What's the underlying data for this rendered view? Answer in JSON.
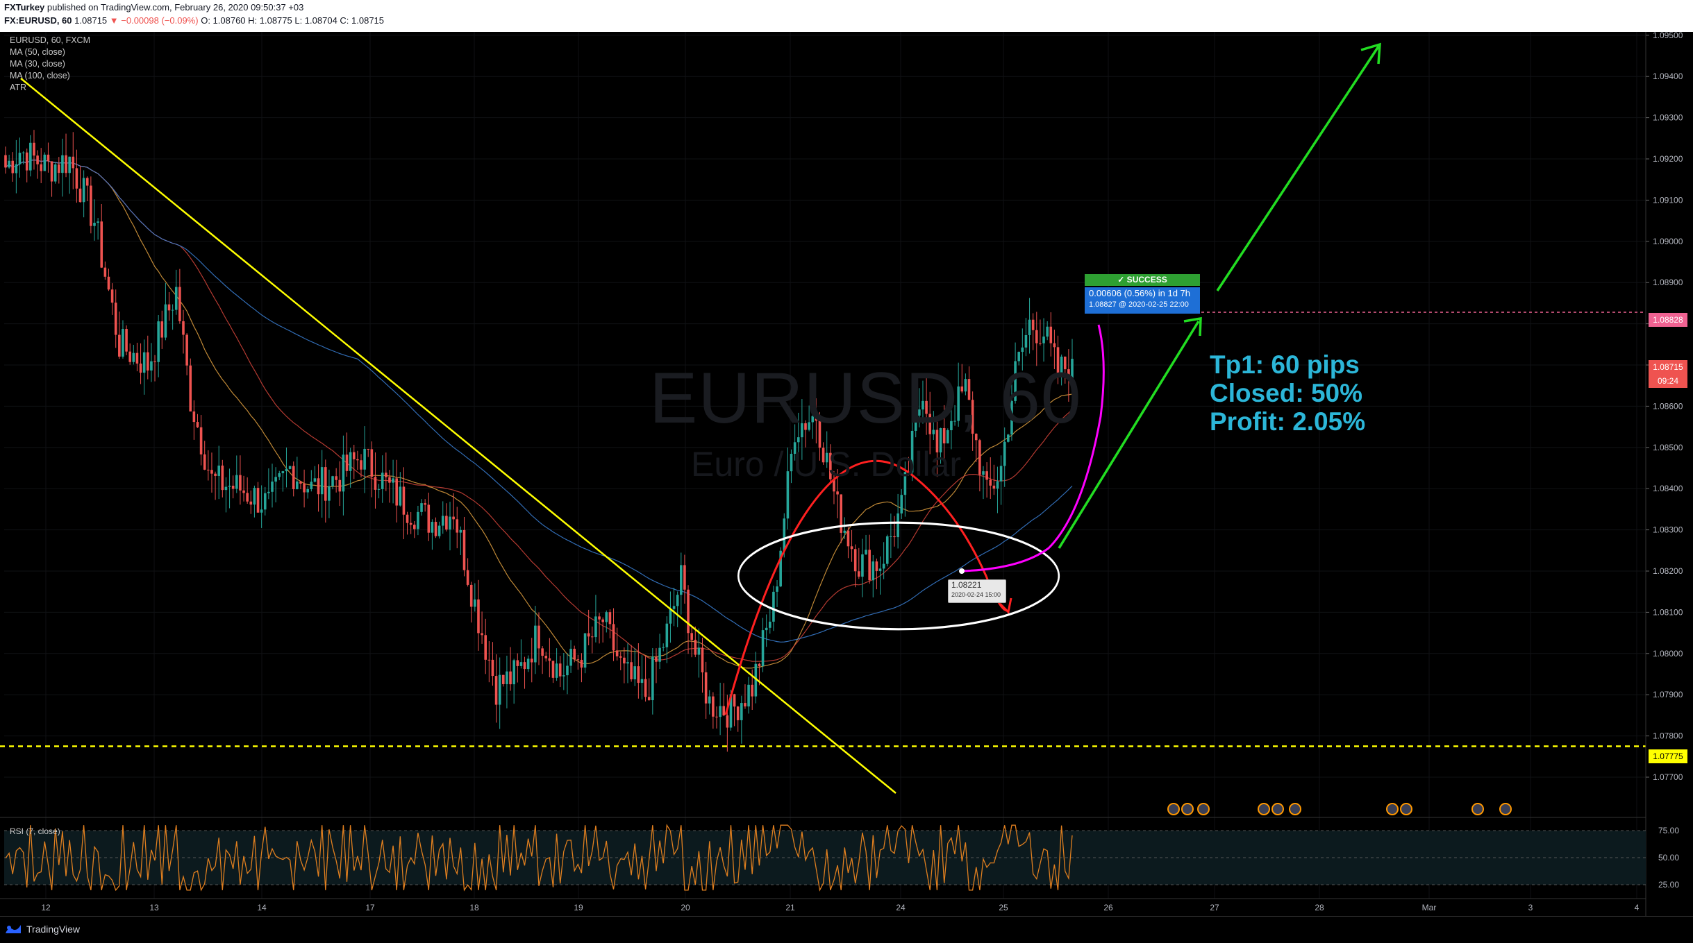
{
  "header": {
    "line1_user": "FXTurkey",
    "line1_text": "published on TradingView.com, February 26, 2020 09:50:37 +03",
    "line2_symbol": "FX:EURUSD, 60",
    "line2_price": "1.08715",
    "line2_change": "▼ −0.00098 (−0.09%)",
    "line2_ohlc": "O: 1.08760  H: 1.08775  L: 1.08704  C: 1.08715"
  },
  "legend": [
    "EURUSD, 60, FXCM",
    "MA (50, close)",
    "MA (30, close)",
    "MA (100, close)",
    "ATR"
  ],
  "watermark": {
    "symbol": "EURUSD, 60",
    "name": "Euro / U.S. Dollar"
  },
  "trade_box": {
    "status": "✓ SUCCESS",
    "line1": "0.00606 (0.56%) in 1d 7h",
    "line2": "1.08827 @ 2020-02-25  22:00"
  },
  "entry_tooltip": {
    "price": "1.08221",
    "date": "2020-02-24 15:00"
  },
  "annotation": {
    "tp1": "Tp1: 60 pips",
    "closed": "Closed: 50%",
    "profit": "Profit: 2.05%"
  },
  "price_labels": {
    "target": "1.08828",
    "last": "1.08715",
    "countdown": "09:24",
    "support": "1.07775"
  },
  "rsi_label": "RSI (7, close)",
  "brand": "TradingView",
  "colors": {
    "up": "#26a69a",
    "down": "#ef5350",
    "trendline": "#ffff00",
    "support": "#ffff00",
    "ma50": "#d4443a",
    "ma30": "#e0a040",
    "ma100": "#3a7fd4",
    "rsi": "#e07f1f",
    "green_arrow": "#22dd22",
    "red_arrow": "#ff2020",
    "magenta": "#ff00ff",
    "text_cyan": "#2cb6d8"
  },
  "chart_data": {
    "type": "candlestick",
    "title": "EURUSD, 60",
    "y_axis": {
      "ticks": [
        1.077,
        1.078,
        1.079,
        1.08,
        1.081,
        1.082,
        1.083,
        1.084,
        1.085,
        1.086,
        1.087,
        1.088,
        1.089,
        1.09,
        1.091,
        1.092,
        1.093,
        1.094,
        1.095
      ],
      "tick_labels": [
        "1.07700",
        "1.07800",
        "1.07900",
        "1.08000",
        "1.08100",
        "1.08200",
        "1.08300",
        "1.08400",
        "1.08500",
        "1.08600",
        "1.08700",
        "1.08800",
        "1.08900",
        "1.09000",
        "1.09100",
        "1.09200",
        "1.09300",
        "1.09400",
        "1.09500"
      ],
      "ylim": [
        1.0765,
        1.0955
      ]
    },
    "x_axis": {
      "labels": [
        "12",
        "13",
        "14",
        "17",
        "18",
        "19",
        "20",
        "21",
        "24",
        "25",
        "26",
        "27",
        "28",
        "Mar",
        "3",
        "4"
      ]
    },
    "anchors": [
      {
        "t": 0,
        "p": 1.0918
      },
      {
        "t": 4,
        "p": 1.0922
      },
      {
        "t": 12,
        "p": 1.0918
      },
      {
        "t": 18,
        "p": 1.092
      },
      {
        "t": 25,
        "p": 1.0905
      },
      {
        "t": 32,
        "p": 1.0875
      },
      {
        "t": 40,
        "p": 1.087
      },
      {
        "t": 48,
        "p": 1.0888
      },
      {
        "t": 52,
        "p": 1.0862
      },
      {
        "t": 58,
        "p": 1.0842
      },
      {
        "t": 66,
        "p": 1.084
      },
      {
        "t": 74,
        "p": 1.0836
      },
      {
        "t": 80,
        "p": 1.0845
      },
      {
        "t": 86,
        "p": 1.084
      },
      {
        "t": 94,
        "p": 1.0843
      },
      {
        "t": 100,
        "p": 1.0848
      },
      {
        "t": 108,
        "p": 1.084
      },
      {
        "t": 114,
        "p": 1.0835
      },
      {
        "t": 120,
        "p": 1.0832
      },
      {
        "t": 126,
        "p": 1.0835
      },
      {
        "t": 132,
        "p": 1.0812
      },
      {
        "t": 138,
        "p": 1.0792
      },
      {
        "t": 144,
        "p": 1.0795
      },
      {
        "t": 150,
        "p": 1.0805
      },
      {
        "t": 156,
        "p": 1.0795
      },
      {
        "t": 162,
        "p": 1.08
      },
      {
        "t": 168,
        "p": 1.0808
      },
      {
        "t": 174,
        "p": 1.0795
      },
      {
        "t": 180,
        "p": 1.079
      },
      {
        "t": 186,
        "p": 1.0805
      },
      {
        "t": 190,
        "p": 1.0818
      },
      {
        "t": 194,
        "p": 1.08
      },
      {
        "t": 198,
        "p": 1.0788
      },
      {
        "t": 204,
        "p": 1.0786
      },
      {
        "t": 210,
        "p": 1.0792
      },
      {
        "t": 216,
        "p": 1.0812
      },
      {
        "t": 222,
        "p": 1.0855
      },
      {
        "t": 228,
        "p": 1.0858
      },
      {
        "t": 234,
        "p": 1.0835
      },
      {
        "t": 240,
        "p": 1.0822
      },
      {
        "t": 246,
        "p": 1.0822
      },
      {
        "t": 252,
        "p": 1.0835
      },
      {
        "t": 258,
        "p": 1.0865
      },
      {
        "t": 262,
        "p": 1.0848
      },
      {
        "t": 266,
        "p": 1.0858
      },
      {
        "t": 270,
        "p": 1.0864
      },
      {
        "t": 276,
        "p": 1.0838
      },
      {
        "t": 280,
        "p": 1.0845
      },
      {
        "t": 284,
        "p": 1.0868
      },
      {
        "t": 288,
        "p": 1.088
      },
      {
        "t": 292,
        "p": 1.0878
      },
      {
        "t": 296,
        "p": 1.0868
      },
      {
        "t": 300,
        "p": 1.0871
      }
    ],
    "annotations": {
      "support_level": 1.07775,
      "target_level": 1.08828,
      "entry": 1.08221
    }
  }
}
